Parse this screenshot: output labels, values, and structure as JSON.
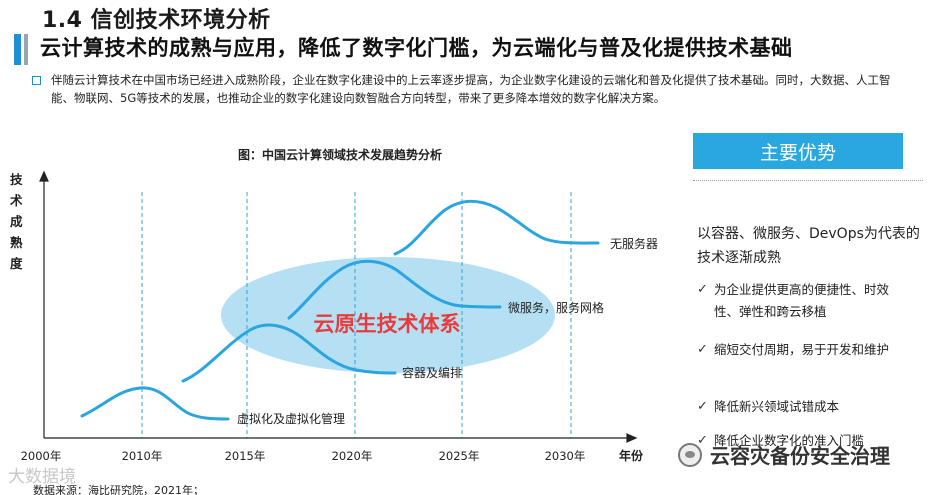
{
  "header": {
    "section_title": "1.4 信创技术环境分析",
    "headline": "云计算技术的成熟与应用，降低了数字化门槛，为云端化与普及化提供技术基础"
  },
  "intro": "伴随云计算技术在中国市场已经进入成熟阶段，企业在数字化建设中的上云率逐步提高，为企业数字化建设的云端化和普及化提供了技术基础。同时，大数据、人工智能、物联网、5G等技术的发展，也推动企业的数字化建设向数智融合方向转型，带来了更多降本增效的数字化解决方案。",
  "figure": {
    "title": "图：中国云计算领域技术发展趋势分析",
    "y_axis_label": "技术成熟度",
    "x_axis_label": "年份",
    "x_ticks": [
      "2000年",
      "2010年",
      "2015年",
      "2020年",
      "2025年",
      "2030年"
    ],
    "curves": [
      {
        "label": "虚拟化及虚拟化管理"
      },
      {
        "label": "容器及编排"
      },
      {
        "label": "微服务，服务网格"
      },
      {
        "label": "无服务器"
      }
    ],
    "ellipse_label": "云原生技术体系",
    "colors": {
      "curve": "#2aa5df",
      "ellipse": "#a8daf2",
      "ellipse_text": "#e83c3c",
      "gridline": "#2aa5df"
    }
  },
  "advantages": {
    "header": "主要优势",
    "intro": "以容器、微服务、DevOps为代表的技术逐渐成熟",
    "items": [
      "为企业提供更高的便捷性、时效性、弹性和跨云移植",
      "缩短交付周期，易于开发和维护",
      "降低新兴领域试错成本",
      "降低企业数字化的准入门槛"
    ]
  },
  "source": "数据来源：海比研究院，2021年；",
  "watermarks": {
    "bottom_left": "大数据境",
    "bottom_right": "云容灾备份安全治理"
  }
}
